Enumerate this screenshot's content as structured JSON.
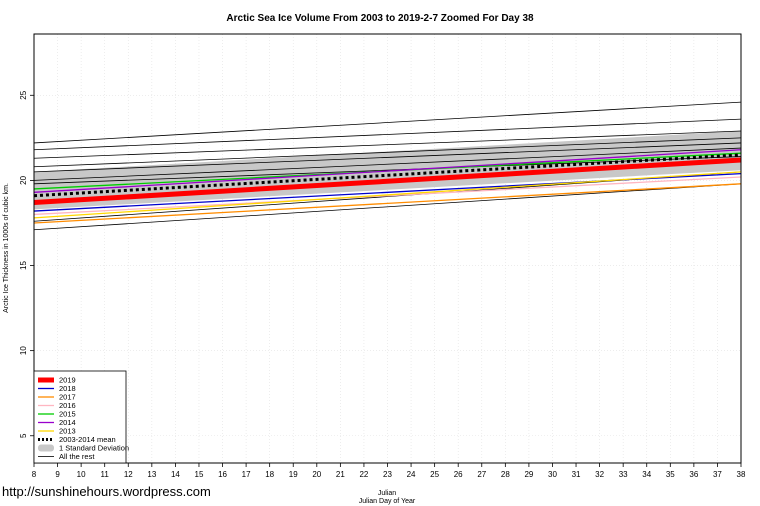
{
  "chart_data": {
    "type": "line",
    "title": "Arctic Sea Ice Volume From 2003 to 2019-2-7 Zoomed For Day 38",
    "xlabel_line1": "Julian",
    "xlabel_line2": "Julian Day of Year",
    "ylabel": "Arctic Ice Thickness in 1000s of cubic km.",
    "xlim": [
      8,
      38
    ],
    "ylim": [
      3.4,
      28.6
    ],
    "x_ticks": [
      8,
      9,
      10,
      11,
      12,
      13,
      14,
      15,
      16,
      17,
      18,
      19,
      20,
      21,
      22,
      23,
      24,
      25,
      26,
      27,
      28,
      29,
      30,
      31,
      32,
      33,
      34,
      35,
      36,
      37,
      38
    ],
    "y_ticks": [
      5,
      10,
      15,
      20,
      25
    ],
    "grid": true,
    "legend_position": "bottom-left",
    "std_band": {
      "name": "1 Standard Deviation",
      "color": "#c8c8c8",
      "x": [
        8,
        38
      ],
      "lower": [
        18.3,
        20.6
      ],
      "upper": [
        20.5,
        22.9
      ]
    },
    "series": [
      {
        "name": "2019",
        "color": "#ff0000",
        "style": "thick",
        "x": [
          8,
          38
        ],
        "y": [
          18.7,
          21.2
        ]
      },
      {
        "name": "2018",
        "color": "#0000cc",
        "style": "solid",
        "x": [
          8,
          38
        ],
        "y": [
          18.2,
          20.4
        ]
      },
      {
        "name": "2017",
        "color": "#ff8c00",
        "style": "solid",
        "x": [
          8,
          38
        ],
        "y": [
          17.5,
          19.8
        ]
      },
      {
        "name": "2016",
        "color": "#ffb6c1",
        "style": "solid",
        "x": [
          8,
          38
        ],
        "y": [
          18.0,
          20.2
        ]
      },
      {
        "name": "2015",
        "color": "#00cc00",
        "style": "solid",
        "x": [
          8,
          38
        ],
        "y": [
          19.5,
          21.6
        ]
      },
      {
        "name": "2014",
        "color": "#9900cc",
        "style": "solid",
        "x": [
          8,
          38
        ],
        "y": [
          19.3,
          21.8
        ]
      },
      {
        "name": "2013",
        "color": "#ffd700",
        "style": "solid",
        "x": [
          8,
          38
        ],
        "y": [
          17.8,
          20.5
        ]
      },
      {
        "name": "2003-2014 mean",
        "color": "#000000",
        "style": "dotted",
        "x": [
          8,
          38
        ],
        "y": [
          19.1,
          21.5
        ]
      },
      {
        "name": "All the rest",
        "color": "#000000",
        "style": "thin",
        "x": [
          8,
          38
        ],
        "y": [
          22.2,
          24.6
        ]
      },
      {
        "name": "All the rest",
        "color": "#000000",
        "style": "thin",
        "x": [
          8,
          38
        ],
        "y": [
          21.8,
          23.6
        ]
      },
      {
        "name": "All the rest",
        "color": "#000000",
        "style": "thin",
        "x": [
          8,
          38
        ],
        "y": [
          21.3,
          22.9
        ]
      },
      {
        "name": "All the rest",
        "color": "#000000",
        "style": "thin",
        "x": [
          8,
          38
        ],
        "y": [
          20.8,
          22.5
        ]
      },
      {
        "name": "All the rest",
        "color": "#000000",
        "style": "thin",
        "x": [
          8,
          38
        ],
        "y": [
          20.5,
          22.2
        ]
      },
      {
        "name": "All the rest",
        "color": "#000000",
        "style": "thin",
        "x": [
          8,
          38
        ],
        "y": [
          20.0,
          21.9
        ]
      },
      {
        "name": "All the rest",
        "color": "#000000",
        "style": "thin",
        "x": [
          8,
          38
        ],
        "y": [
          19.8,
          21.4
        ]
      },
      {
        "name": "All the rest",
        "color": "#000000",
        "style": "thin",
        "x": [
          8,
          38
        ],
        "y": [
          17.6,
          20.5
        ]
      },
      {
        "name": "All the rest",
        "color": "#000000",
        "style": "thin",
        "x": [
          8,
          38
        ],
        "y": [
          17.1,
          19.8
        ]
      }
    ],
    "legend": [
      {
        "label": "2019",
        "color": "#ff0000",
        "style": "thick"
      },
      {
        "label": "2018",
        "color": "#0000cc",
        "style": "solid"
      },
      {
        "label": "2017",
        "color": "#ff8c00",
        "style": "solid"
      },
      {
        "label": "2016",
        "color": "#ffb6c1",
        "style": "solid"
      },
      {
        "label": "2015",
        "color": "#00cc00",
        "style": "solid"
      },
      {
        "label": "2014",
        "color": "#9900cc",
        "style": "solid"
      },
      {
        "label": "2013",
        "color": "#ffd700",
        "style": "solid"
      },
      {
        "label": "2003-2014 mean",
        "color": "#000000",
        "style": "dotted"
      },
      {
        "label": "1 Standard Deviation",
        "color": "#c8c8c8",
        "style": "band"
      },
      {
        "label": "All the rest",
        "color": "#000000",
        "style": "thin"
      }
    ]
  },
  "footer": {
    "url": "http://sunshinehours.wordpress.com"
  }
}
